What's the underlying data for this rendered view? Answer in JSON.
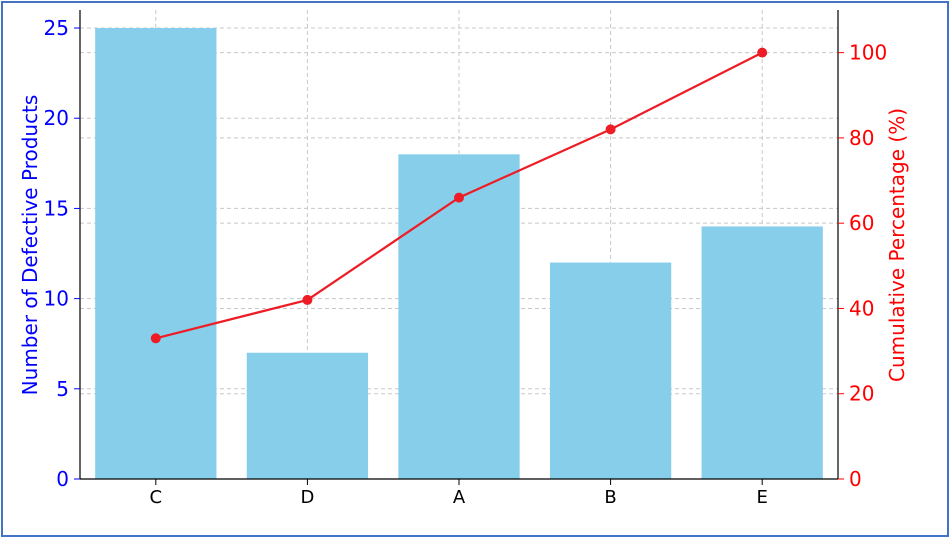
{
  "chart_data": {
    "type": "bar",
    "categories": [
      "C",
      "D",
      "A",
      "B",
      "E"
    ],
    "values": [
      25,
      7,
      18,
      12,
      14
    ],
    "cumulative_percentage": [
      33,
      42,
      66,
      82,
      100
    ],
    "ylabel": "Number of Defective Products",
    "y2label": "Cumulative Percentage (%)",
    "ylim": [
      0,
      26
    ],
    "y2lim": [
      0,
      110
    ],
    "yticks": [
      0,
      5,
      10,
      15,
      20,
      25
    ],
    "y2ticks": [
      0,
      20,
      40,
      60,
      80,
      100
    ],
    "grid": true,
    "colors": {
      "bars": "#87ceeb",
      "line": "#ee1c25",
      "left_axis": "#0000ff",
      "right_axis": "#ff0000",
      "border": "#4472c4"
    }
  }
}
